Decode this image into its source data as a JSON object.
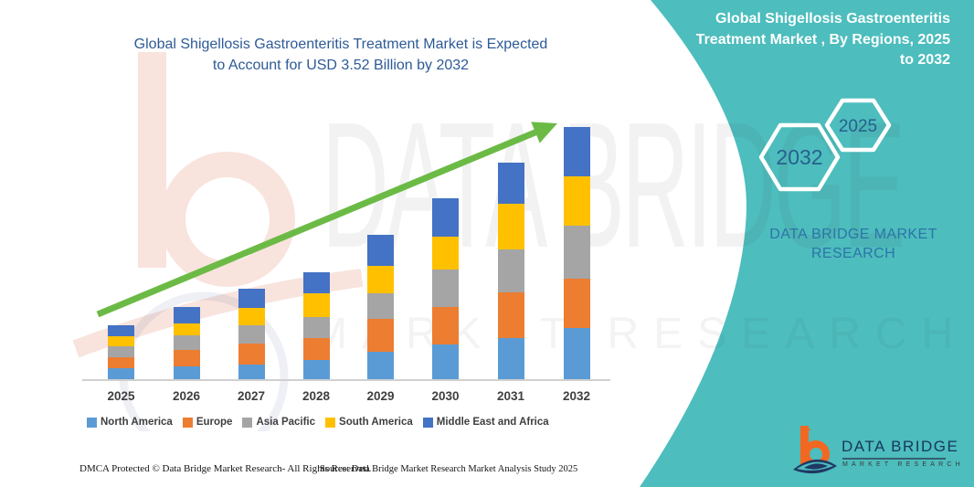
{
  "header": {
    "title_line1": "Global Shigellosis Gastroenteritis Treatment Market is Expected",
    "title_line2": "to Account for USD 3.52 Billion by 2032",
    "panel_line1": "Global Shigellosis Gastroenteritis",
    "panel_line2": "Treatment Market , By Regions, 2025",
    "panel_line3": "to 2032",
    "hexagon_large_year": "2032",
    "hexagon_small_year": "2025",
    "brand_line1": "DATA BRIDGE MARKET",
    "brand_line2": "RESEARCH"
  },
  "watermark": {
    "line1": "DATA BRIDGE",
    "line2": "MARKET RESEARCH"
  },
  "chart_data": {
    "type": "bar",
    "stacked": true,
    "unit": "USD Billion",
    "categories": [
      "2025",
      "2026",
      "2027",
      "2028",
      "2029",
      "2030",
      "2031",
      "2032"
    ],
    "series": [
      {
        "name": "North America",
        "color": "#5B9BD5",
        "values": [
          0.17,
          0.19,
          0.22,
          0.28,
          0.39,
          0.5,
          0.59,
          0.72
        ]
      },
      {
        "name": "Europe",
        "color": "#ED7D31",
        "values": [
          0.15,
          0.23,
          0.29,
          0.3,
          0.46,
          0.52,
          0.63,
          0.69
        ]
      },
      {
        "name": "Asia Pacific",
        "color": "#A5A5A5",
        "values": [
          0.15,
          0.2,
          0.25,
          0.29,
          0.36,
          0.51,
          0.59,
          0.73
        ]
      },
      {
        "name": "South America",
        "color": "#FFC000",
        "values": [
          0.14,
          0.17,
          0.24,
          0.33,
          0.37,
          0.46,
          0.64,
          0.69
        ]
      },
      {
        "name": "Middle East and Africa",
        "color": "#4472C4",
        "values": [
          0.15,
          0.23,
          0.27,
          0.3,
          0.44,
          0.53,
          0.57,
          0.69
        ]
      }
    ],
    "totals": [
      0.76,
      1.02,
      1.27,
      1.5,
      2.02,
      2.52,
      3.02,
      3.52
    ],
    "title": "Global Shigellosis Gastroenteritis Treatment Market is Expected to Account for USD 3.52 Billion by 2032",
    "xlabel": "",
    "ylabel": "",
    "ylim": [
      0,
      3.7
    ],
    "grid": false,
    "legend_position": "bottom",
    "annotations": [
      "upward green trend arrow from 2025 to 2032"
    ]
  },
  "footer": {
    "dmca": "DMCA Protected © Data Bridge Market Research- All Rights Reserved.",
    "source": "Source: Data Bridge Market Research Market Analysis Study 2025",
    "logo_title": "DATA BRIDGE",
    "logo_subtitle": "MARKET RESEARCH"
  },
  "colors": {
    "teal_panel": "#4DBDBD",
    "title_blue": "#2D5A96",
    "hexagon_text": "#26618E",
    "brand_blue": "#2E74A8",
    "arrow_green": "#6CBA46",
    "logo_navy": "#17375E",
    "logo_orange": "#F26822"
  }
}
